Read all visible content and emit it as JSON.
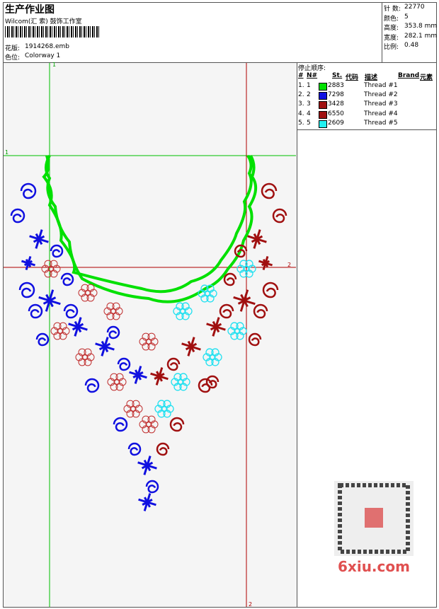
{
  "header": {
    "title": "生产作业图",
    "company": "Wilcom(汇 索) 鼓饰工作室",
    "design_label": "花版:",
    "design_file": "1914268.emb",
    "colorway_label": "色位:",
    "colorway": "Colorway 1"
  },
  "stats": [
    {
      "label": "针 数:",
      "value": "22770"
    },
    {
      "label": "颜色:",
      "value": "5"
    },
    {
      "label": "高度:",
      "value": "353.8 mm"
    },
    {
      "label": "宽度:",
      "value": "282.1 mm"
    },
    {
      "label": "比例:",
      "value": "0.48"
    }
  ],
  "stop_sequence": {
    "title": "停止顺序:",
    "columns": [
      "#",
      "N#",
      "St.",
      "代码",
      "描述",
      "Brand",
      "元素"
    ],
    "rows": [
      {
        "index": "1.",
        "n": "1",
        "color": "#00e000",
        "code": "2883",
        "description": "Thread #1"
      },
      {
        "index": "2.",
        "n": "2",
        "color": "#1010e0",
        "code": "7298",
        "description": "Thread #2"
      },
      {
        "index": "3.",
        "n": "3",
        "color": "#a01010",
        "code": "3428",
        "description": "Thread #3"
      },
      {
        "index": "4.",
        "n": "4",
        "color": "#a01010",
        "code": "6550",
        "description": "Thread #4"
      },
      {
        "index": "5.",
        "n": "5",
        "color": "#20f0f0",
        "code": "2609",
        "description": "Thread #5"
      }
    ]
  },
  "guides": {
    "vertical_1": "1",
    "horizontal_1": "1",
    "horizontal_2": "2",
    "vertical_2": "2"
  },
  "watermark": "6xiu.com"
}
